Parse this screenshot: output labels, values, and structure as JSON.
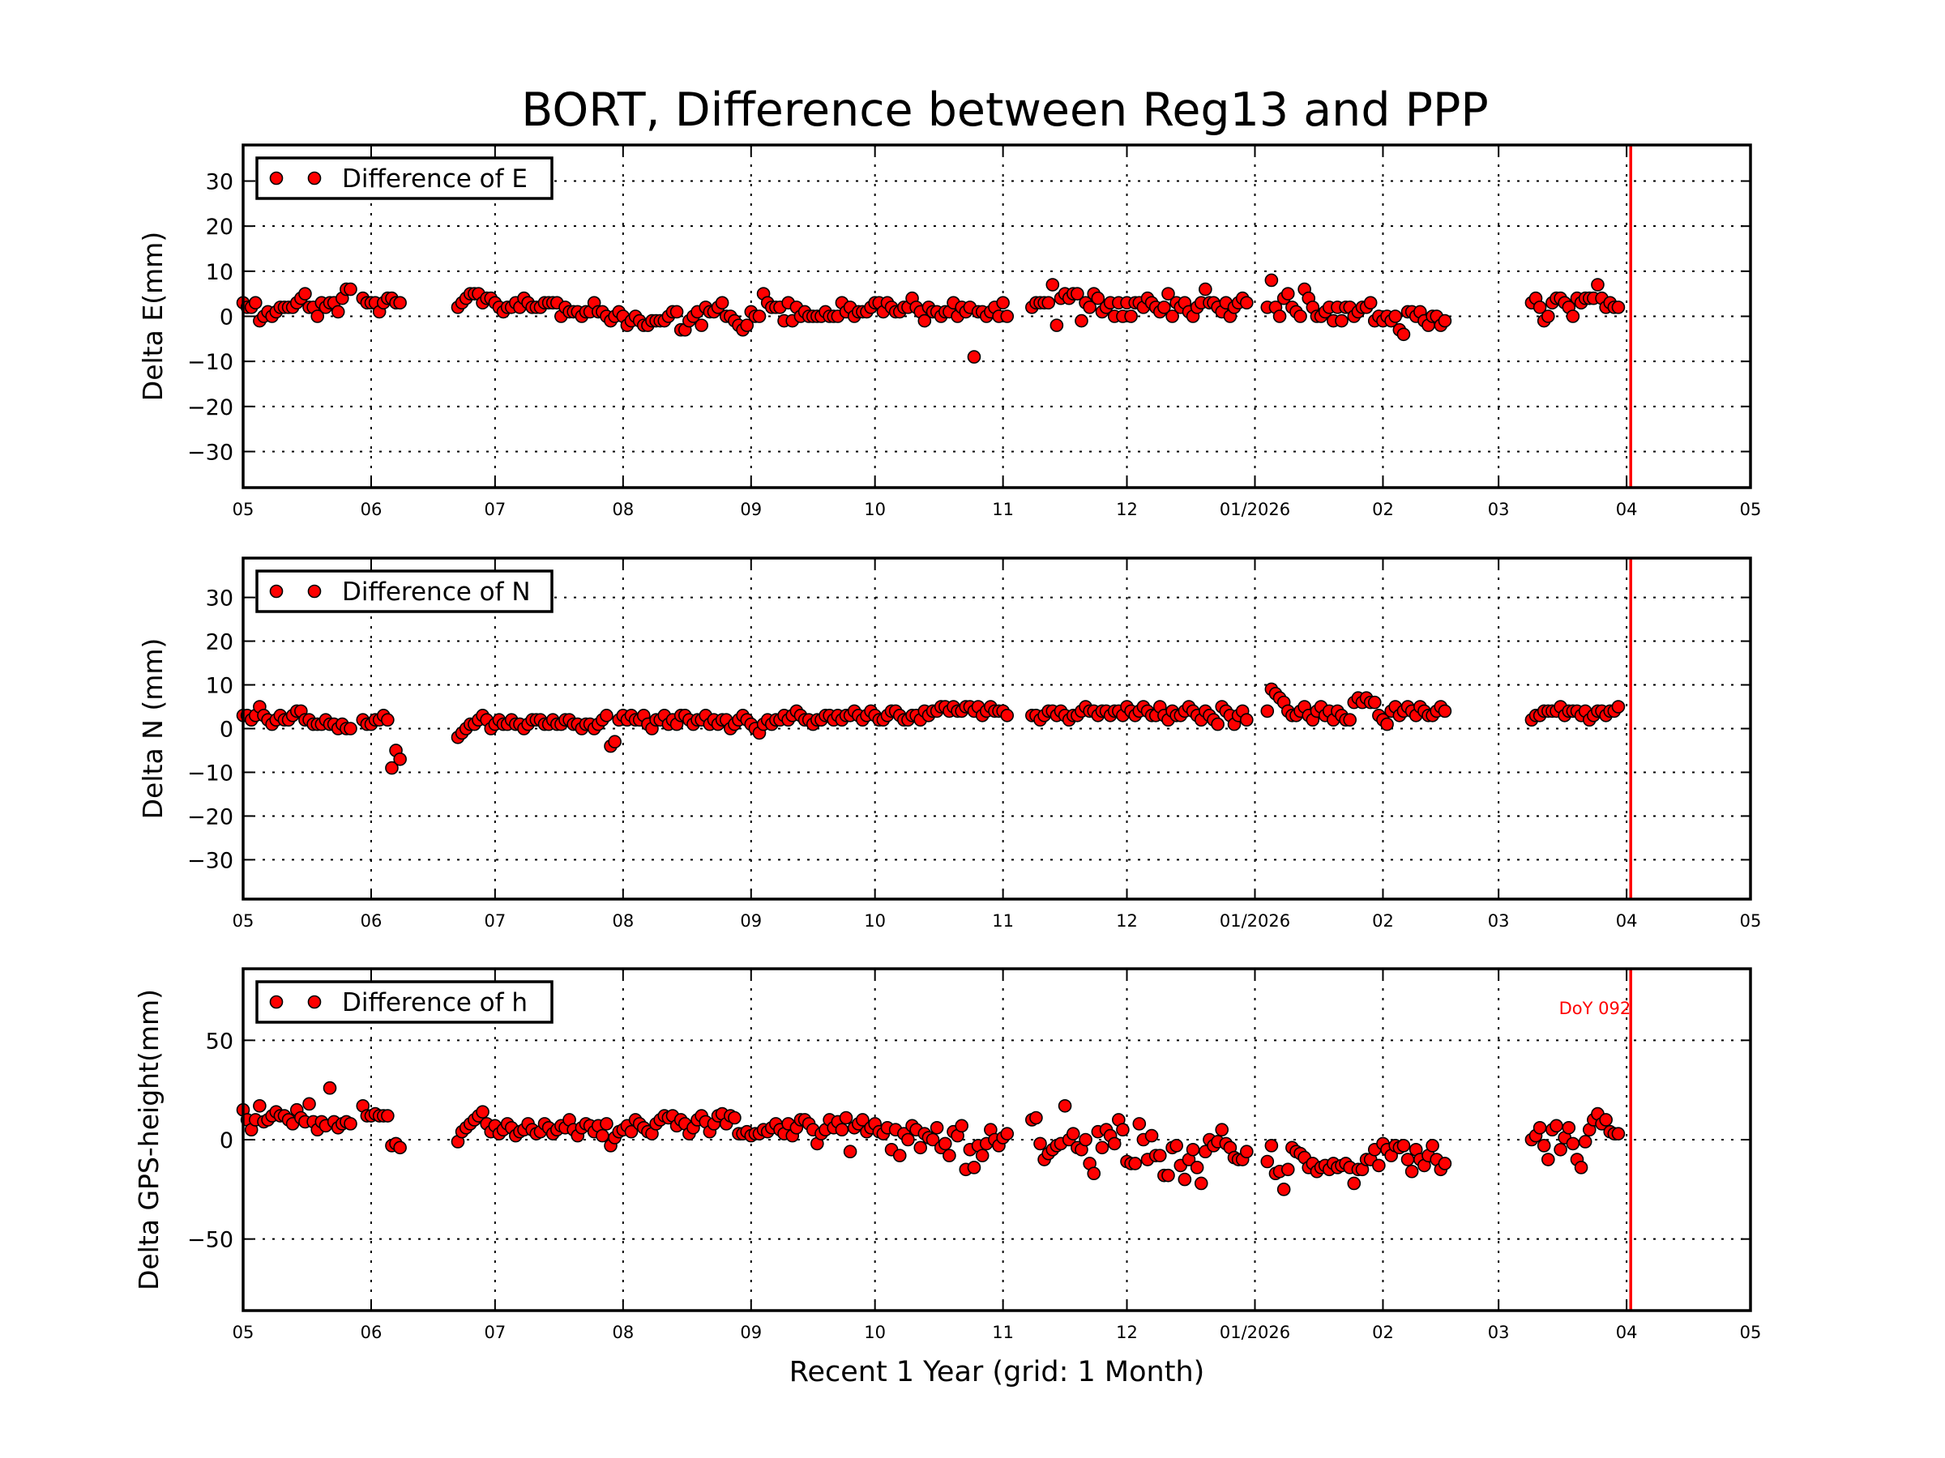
{
  "title": "BORT, Difference between Reg13 and PPP",
  "xlabel": "Recent 1 Year (grid: 1 Month)",
  "marker_color": "#ff0000",
  "vline_color": "#ff0000",
  "chart_data": [
    {
      "type": "scatter",
      "ylabel": "Delta E(mm)",
      "legend": "Difference of E",
      "legend_position": "top-left",
      "grid": true,
      "xlim": [
        "2025-05-01",
        "2026-05-01"
      ],
      "ylim": [
        -38,
        38
      ],
      "yticks": [
        -30,
        -20,
        -10,
        0,
        10,
        20,
        30
      ],
      "xtick_labels": [
        "05",
        "06",
        "07",
        "08",
        "09",
        "10",
        "11",
        "12",
        "01/2026",
        "02",
        "03",
        "04",
        "05"
      ],
      "segments": [
        {
          "start": "2025-05-01",
          "values": [
            3,
            2,
            2,
            3,
            -1,
            0,
            1,
            0,
            1,
            2,
            2,
            2,
            2,
            3,
            4,
            5,
            2,
            2,
            0,
            3,
            2,
            3,
            3,
            1,
            4,
            6,
            6
          ]
        },
        {
          "start": "2025-05-30",
          "values": [
            4,
            3,
            3,
            3,
            1,
            3,
            4,
            4,
            3,
            3
          ]
        },
        {
          "start": "2025-06-22",
          "values": [
            2,
            3,
            4,
            5,
            5,
            5,
            3,
            4,
            4,
            3,
            2,
            1,
            2,
            2,
            3,
            2,
            4,
            3,
            2,
            2,
            2,
            3,
            3,
            3,
            3,
            0,
            2,
            1,
            1,
            1,
            0,
            1,
            1,
            3,
            1,
            1,
            0,
            -1,
            0,
            1,
            0,
            -2,
            -1,
            0,
            -1,
            -2,
            -2,
            -1,
            -1,
            -1,
            -1,
            0,
            1,
            1,
            -3,
            -3,
            -1,
            0,
            1,
            -2,
            2,
            1,
            1,
            2,
            3,
            0,
            0,
            -1,
            -2,
            -3,
            -2,
            1,
            0,
            0,
            5,
            3,
            2,
            2,
            2,
            -1,
            3,
            -1,
            2,
            0,
            1,
            0,
            0,
            0,
            0,
            1,
            0,
            0,
            0,
            3,
            1,
            2,
            0,
            1,
            1,
            1,
            2,
            3,
            3,
            1,
            3,
            2,
            1,
            1,
            2,
            2,
            4,
            2,
            1,
            -1,
            2,
            1,
            1,
            0,
            1,
            1,
            3,
            0,
            2,
            1,
            2,
            -9,
            1,
            1,
            0,
            1,
            2,
            0,
            3,
            0
          ]
        },
        {
          "start": "2025-11-08",
          "values": [
            2,
            3,
            3,
            3,
            3,
            7,
            -2,
            4,
            5,
            4,
            5,
            5,
            -1,
            3,
            2,
            5,
            4,
            1,
            2,
            3,
            0,
            3,
            0,
            3,
            0,
            3,
            3,
            2,
            4,
            3,
            2,
            1,
            2,
            5,
            0,
            3,
            2,
            3,
            1,
            0,
            2,
            3,
            6,
            3,
            3,
            2,
            1,
            3,
            0,
            2,
            3,
            4,
            3
          ]
        },
        {
          "start": "2026-01-04",
          "values": [
            2,
            8,
            2,
            0,
            4,
            5,
            2,
            1,
            0,
            6,
            4,
            2,
            0,
            0,
            1,
            2,
            -1,
            2,
            -1,
            2,
            2,
            0,
            1,
            2,
            2,
            3,
            -1,
            0,
            -1,
            0,
            -1,
            0,
            -3,
            -4,
            1,
            1,
            0,
            1,
            -1,
            -2,
            0,
            0,
            -2,
            -1
          ]
        },
        {
          "start": "2026-03-09",
          "values": [
            3,
            4,
            2,
            -1,
            0,
            3,
            4,
            4,
            3,
            2,
            0,
            4,
            3,
            4,
            4,
            4,
            7,
            4,
            2,
            3,
            2,
            2
          ]
        }
      ],
      "vline": {
        "date": "2026-04-02"
      }
    },
    {
      "type": "scatter",
      "ylabel": "Delta N (mm)",
      "legend": "Difference of N",
      "legend_position": "top-left",
      "grid": true,
      "xlim": [
        "2025-05-01",
        "2026-05-01"
      ],
      "ylim": [
        -39,
        39
      ],
      "yticks": [
        -30,
        -20,
        -10,
        0,
        10,
        20,
        30
      ],
      "xtick_labels": [
        "05",
        "06",
        "07",
        "08",
        "09",
        "10",
        "11",
        "12",
        "01/2026",
        "02",
        "03",
        "04",
        "05"
      ],
      "segments": [
        {
          "start": "2025-05-01",
          "values": [
            3,
            3,
            2,
            3,
            5,
            3,
            2,
            1,
            2,
            3,
            2,
            2,
            3,
            4,
            4,
            2,
            2,
            1,
            1,
            1,
            2,
            1,
            1,
            0,
            1,
            0,
            0
          ]
        },
        {
          "start": "2025-05-30",
          "values": [
            2,
            1,
            1,
            2,
            2,
            3,
            2,
            -9,
            -5,
            -7
          ]
        },
        {
          "start": "2025-06-22",
          "values": [
            -2,
            -1,
            0,
            1,
            1,
            2,
            3,
            2,
            0,
            1,
            2,
            1,
            1,
            2,
            1,
            1,
            0,
            1,
            2,
            2,
            2,
            1,
            1,
            2,
            1,
            1,
            2,
            2,
            1,
            1,
            0,
            1,
            1,
            0,
            1,
            2,
            3,
            -4,
            -3,
            2,
            3,
            2,
            3,
            2,
            2,
            3,
            1,
            0,
            2,
            2,
            3,
            1,
            2,
            1,
            3,
            3,
            2,
            1,
            2,
            2,
            3,
            1,
            2,
            1,
            2,
            2,
            0,
            1,
            2,
            3,
            2,
            1,
            0,
            -1,
            1,
            2,
            1,
            2,
            2,
            3,
            2,
            3,
            4,
            3,
            2,
            2,
            1,
            2,
            2,
            3,
            3,
            2,
            3,
            2,
            3,
            3,
            4,
            3,
            2,
            3,
            4,
            3,
            2,
            2,
            3,
            4,
            4,
            3,
            2,
            2,
            3,
            3,
            2,
            4,
            3,
            4,
            4,
            5,
            5,
            4,
            5,
            4,
            4,
            5,
            5,
            4,
            5,
            3,
            4,
            5,
            4,
            4,
            4,
            3
          ]
        },
        {
          "start": "2025-11-08",
          "values": [
            3,
            3,
            2,
            3,
            4,
            4,
            3,
            4,
            3,
            2,
            3,
            3,
            4,
            5,
            4,
            4,
            3,
            4,
            4,
            3,
            4,
            4,
            3,
            5,
            4,
            3,
            4,
            5,
            4,
            3,
            3,
            5,
            3,
            2,
            4,
            3,
            3,
            4,
            5,
            4,
            3,
            2,
            4,
            3,
            2,
            1,
            5,
            4,
            3,
            1,
            3,
            4,
            2
          ]
        },
        {
          "start": "2026-01-04",
          "values": [
            4,
            9,
            8,
            7,
            6,
            4,
            3,
            3,
            4,
            5,
            3,
            2,
            4,
            5,
            3,
            4,
            2,
            4,
            3,
            2,
            2,
            6,
            7,
            6,
            7,
            6,
            6,
            3,
            2,
            1,
            4,
            5,
            3,
            4,
            5,
            4,
            3,
            5,
            4,
            3,
            3,
            4,
            5,
            4
          ]
        },
        {
          "start": "2026-03-09",
          "values": [
            2,
            3,
            3,
            4,
            4,
            4,
            4,
            5,
            3,
            4,
            4,
            4,
            3,
            4,
            2,
            3,
            4,
            4,
            3,
            4,
            4,
            5
          ]
        }
      ],
      "vline": {
        "date": "2026-04-02"
      }
    },
    {
      "type": "scatter",
      "ylabel": "Delta GPS-height(mm)",
      "legend": "Difference of h",
      "legend_position": "top-left",
      "grid": true,
      "xlim": [
        "2025-05-01",
        "2026-05-01"
      ],
      "ylim": [
        -86,
        86
      ],
      "yticks": [
        -50,
        0,
        50
      ],
      "xtick_labels": [
        "05",
        "06",
        "07",
        "08",
        "09",
        "10",
        "11",
        "12",
        "01/2026",
        "02",
        "03",
        "04",
        "05"
      ],
      "segments": [
        {
          "start": "2025-05-01",
          "values": [
            15,
            10,
            5,
            10,
            17,
            9,
            10,
            12,
            14,
            12,
            12,
            10,
            8,
            15,
            11,
            9,
            18,
            9,
            5,
            9,
            7,
            26,
            9,
            6,
            8,
            9,
            8
          ]
        },
        {
          "start": "2025-05-30",
          "values": [
            17,
            12,
            12,
            13,
            12,
            12,
            12,
            -3,
            -2,
            -4
          ]
        },
        {
          "start": "2025-06-22",
          "values": [
            -1,
            4,
            6,
            8,
            10,
            12,
            14,
            8,
            4,
            7,
            3,
            5,
            8,
            6,
            2,
            4,
            5,
            8,
            5,
            3,
            4,
            8,
            6,
            3,
            5,
            7,
            6,
            10,
            5,
            2,
            6,
            8,
            7,
            4,
            7,
            2,
            8,
            -3,
            1,
            4,
            5,
            7,
            4,
            10,
            8,
            6,
            4,
            3,
            8,
            10,
            12,
            11,
            12,
            7,
            10,
            8,
            3,
            6,
            10,
            12,
            9,
            4,
            8,
            12,
            13,
            8,
            12,
            11,
            3,
            3,
            4,
            2,
            3,
            3,
            5,
            4,
            6,
            8,
            5,
            3,
            8,
            2,
            6,
            10,
            10,
            8,
            5,
            -2,
            3,
            5,
            10,
            6,
            9,
            5,
            11,
            -6,
            6,
            8,
            10,
            4,
            6,
            8,
            4,
            3,
            6,
            -5,
            5,
            -8,
            3,
            0,
            7,
            5,
            -4,
            3,
            1,
            0,
            6,
            -4,
            -2,
            -8,
            4,
            2,
            7,
            -15,
            -5,
            -14,
            -3,
            -8,
            -2,
            5,
            0,
            -3,
            1,
            3
          ]
        },
        {
          "start": "2025-11-08",
          "values": [
            10,
            11,
            -2,
            -10,
            -7,
            -5,
            -3,
            -2,
            17,
            0,
            3,
            -4,
            -5,
            0,
            -12,
            -17,
            4,
            -4,
            5,
            2,
            -2,
            10,
            5,
            -11,
            -12,
            -12,
            8,
            0,
            -10,
            2,
            -8,
            -8,
            -18,
            -18,
            -4,
            -3,
            -13,
            -20,
            -10,
            -5,
            -14,
            -22,
            -6,
            0,
            -3,
            -1,
            5,
            -2,
            -4,
            -9,
            -10,
            -10,
            -6
          ]
        },
        {
          "start": "2026-01-04",
          "values": [
            -11,
            -3,
            -17,
            -16,
            -25,
            -15,
            -4,
            -6,
            -7,
            -9,
            -14,
            -12,
            -16,
            -14,
            -13,
            -15,
            -12,
            -14,
            -13,
            -12,
            -14,
            -22,
            -15,
            -15,
            -10,
            -10,
            -5,
            -13,
            -2,
            -5,
            -8,
            -3,
            -4,
            -3,
            -10,
            -16,
            -5,
            -10,
            -13,
            -8,
            -3,
            -10,
            -15,
            -12
          ]
        },
        {
          "start": "2026-03-09",
          "values": [
            0,
            2,
            6,
            -3,
            -10,
            5,
            7,
            -5,
            1,
            6,
            -2,
            -10,
            -14,
            -1,
            5,
            10,
            13,
            8,
            10,
            4,
            3,
            3
          ]
        }
      ],
      "vline": {
        "date": "2026-04-02",
        "label": "DoY 092"
      }
    }
  ]
}
